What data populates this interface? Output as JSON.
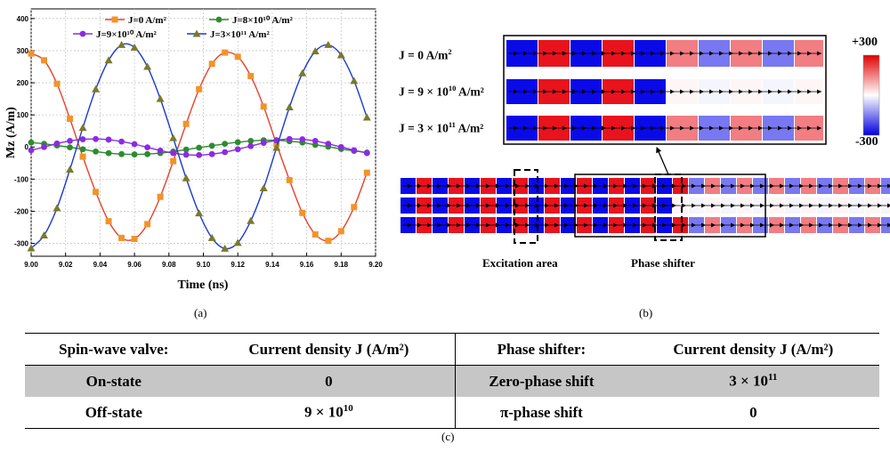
{
  "figure": {
    "caption_a": "(a)",
    "caption_b": "(b)",
    "caption_c": "(c)"
  },
  "chart_data": {
    "type": "line",
    "xlabel": "Time (ns)",
    "ylabel": "Mz (A/m)",
    "xlim": [
      9.0,
      9.2
    ],
    "ylim": [
      -340,
      430
    ],
    "x_ticks": [
      "9.00",
      "9.02",
      "9.04",
      "9.06",
      "9.08",
      "9.10",
      "9.12",
      "9.14",
      "9.16",
      "9.18",
      "9.20"
    ],
    "y_ticks": [
      "400",
      "300",
      "200",
      "100",
      "0",
      "-100",
      "-200",
      "-300"
    ],
    "grid": true,
    "legend_position": "top",
    "x": [
      9.0,
      9.0075,
      9.015,
      9.0225,
      9.03,
      9.0375,
      9.045,
      9.0525,
      9.06,
      9.0675,
      9.075,
      9.0825,
      9.09,
      9.0975,
      9.105,
      9.1125,
      9.12,
      9.1275,
      9.135,
      9.1425,
      9.15,
      9.1575,
      9.165,
      9.1725,
      9.18,
      9.1875,
      9.195
    ],
    "series": [
      {
        "name": "J=0  A/m²",
        "color": "#f0942a",
        "line_color": "#e8402a",
        "marker": "square",
        "values": [
          291,
          270,
          197,
          88,
          -30,
          -140,
          -231,
          -283,
          -286,
          -240,
          -155,
          -44,
          72,
          180,
          259,
          294,
          281,
          221,
          126,
          9,
          -103,
          -205,
          -272,
          -292,
          -262,
          -187,
          -80
        ]
      },
      {
        "name": "J=8×10¹⁰ A/m²",
        "color": "#2e8b2e",
        "line_color": "#2e8b2e",
        "marker": "circle",
        "values": [
          14,
          10,
          5,
          -1,
          -7,
          -14,
          -19,
          -22,
          -23,
          -22,
          -19,
          -14,
          -8,
          -2,
          4,
          10,
          15,
          19,
          21,
          21,
          18,
          14,
          7,
          1,
          -6,
          -12,
          -17
        ]
      },
      {
        "name": "J=9×10¹⁰ A/m²",
        "color": "#8a2be2",
        "line_color": "#8a2be2",
        "marker": "circle",
        "values": [
          -10,
          0,
          11,
          19,
          24,
          25,
          23,
          17,
          9,
          -1,
          -11,
          -19,
          -24,
          -25,
          -22,
          -16,
          -7,
          3,
          13,
          21,
          25,
          24,
          19,
          10,
          0,
          -10,
          -19
        ]
      },
      {
        "name": "J=3×10¹¹ A/m²",
        "color": "#7a7a2a",
        "line_color": "#1a3ad0",
        "marker": "triangle",
        "values": [
          -315,
          -275,
          -190,
          -70,
          60,
          180,
          270,
          318,
          310,
          250,
          150,
          28,
          -97,
          -206,
          -283,
          -316,
          -298,
          -230,
          -128,
          -2,
          124,
          230,
          298,
          318,
          286,
          206,
          92
        ]
      }
    ]
  },
  "panel_b": {
    "rows": [
      {
        "label_base": "J = 0 A/m",
        "sup": "2",
        "label_tail": ""
      },
      {
        "label_base": "J = 9 × 10",
        "sup": "10",
        "label_tail": " A/m²"
      },
      {
        "label_base": "J = 3 × 10",
        "sup": "11",
        "label_tail": " A/m²"
      }
    ],
    "colorbar_max": "+300",
    "colorbar_min": "-300",
    "excitation_label": "Excitation area",
    "phase_shifter_label": "Phase shifter"
  },
  "table": {
    "headers": [
      "Spin-wave valve:",
      "Current density J (A/m²)",
      "Phase shifter:",
      "Current density J (A/m²)"
    ],
    "rows": [
      {
        "c1": "On-state",
        "c2": "0",
        "c3": "Zero-phase shift",
        "c4_base": "3 × 10",
        "c4_sup": "11"
      },
      {
        "c1": "Off-state",
        "c2_base": "9 × 10",
        "c2_sup": "10",
        "c3": "π-phase shift",
        "c4": "0"
      }
    ]
  }
}
